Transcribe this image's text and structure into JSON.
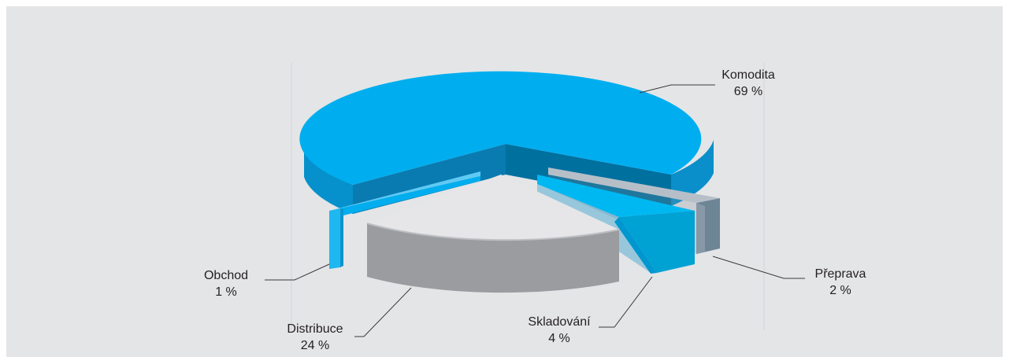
{
  "chart_data": {
    "type": "pie",
    "series": [
      {
        "label": "Komodita",
        "value": 69,
        "value_text": "69 %",
        "color": "#00aeef"
      },
      {
        "label": "Přeprava",
        "value": 2,
        "value_text": "2 %",
        "color": "#8c9aa6"
      },
      {
        "label": "Skladování",
        "value": 4,
        "value_text": "4 %",
        "color": "#00b3ee"
      },
      {
        "label": "Distribuce",
        "value": 24,
        "value_text": "24 %",
        "color": "#a3a4a7"
      },
      {
        "label": "Obchod",
        "value": 1,
        "value_text": "1 %",
        "color": "#25b9f0"
      }
    ],
    "style": "3d-exploded"
  }
}
